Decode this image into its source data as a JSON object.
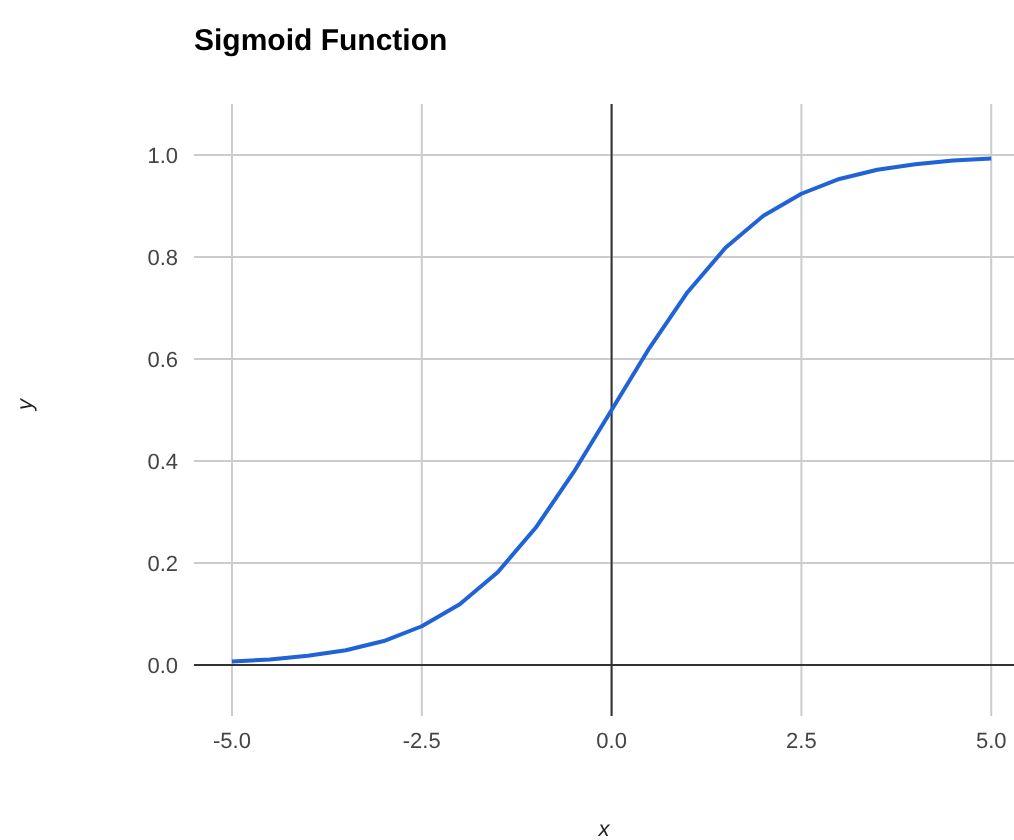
{
  "chart_data": {
    "type": "line",
    "title": "Sigmoid Function",
    "xlabel": "x",
    "ylabel": "y",
    "x": [
      -5,
      -4.5,
      -4,
      -3.5,
      -3,
      -2.5,
      -2,
      -1.5,
      -1,
      -0.5,
      0,
      0.5,
      1,
      1.5,
      2,
      2.5,
      3,
      3.5,
      4,
      4.5,
      5
    ],
    "series": [
      {
        "color": "#1f63d6",
        "values": [
          0.007,
          0.011,
          0.018,
          0.029,
          0.047,
          0.076,
          0.119,
          0.182,
          0.269,
          0.378,
          0.5,
          0.622,
          0.731,
          0.818,
          0.881,
          0.924,
          0.953,
          0.971,
          0.982,
          0.989,
          0.993
        ]
      }
    ],
    "xlim": [
      -5.5,
      5.3
    ],
    "ylim": [
      -0.1,
      1.1
    ],
    "xticks": [
      {
        "value": -5,
        "label": "-5.0"
      },
      {
        "value": -2.5,
        "label": "-2.5"
      },
      {
        "value": 0,
        "label": "0.0"
      },
      {
        "value": 2.5,
        "label": "2.5"
      },
      {
        "value": 5,
        "label": "5.0"
      }
    ],
    "yticks": [
      {
        "value": 0,
        "label": "0.0"
      },
      {
        "value": 0.2,
        "label": "0.2"
      },
      {
        "value": 0.4,
        "label": "0.4"
      },
      {
        "value": 0.6,
        "label": "0.6"
      },
      {
        "value": 0.8,
        "label": "0.8"
      },
      {
        "value": 1,
        "label": "1.0"
      }
    ],
    "grid": true,
    "marker": "none",
    "line_style": "solid"
  }
}
